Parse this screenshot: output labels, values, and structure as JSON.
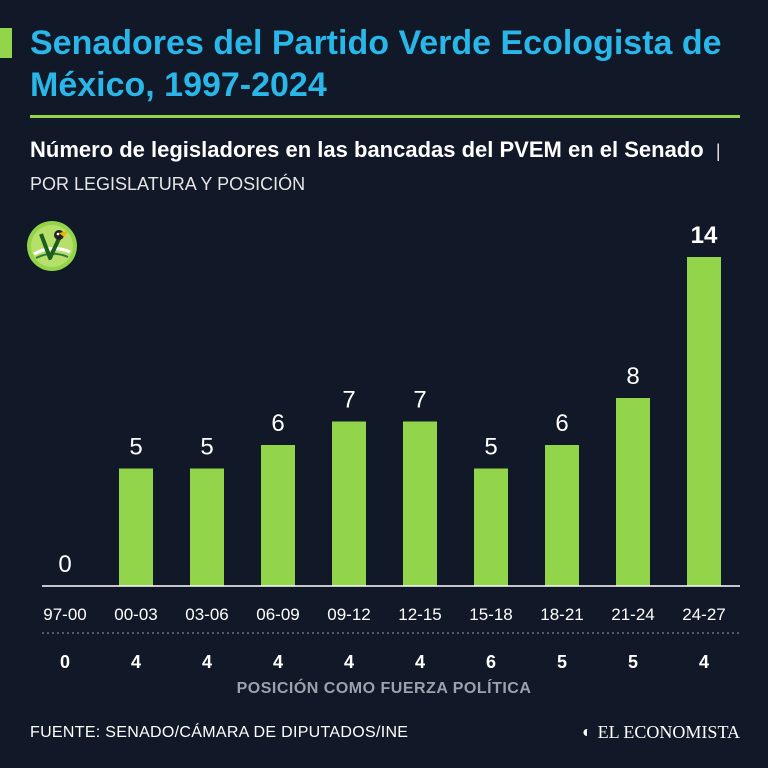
{
  "title": "Senadores del Partido Verde Ecologista de México, 1997-2024",
  "subtitle": {
    "main": "Número de legisladores en las bancadas del PVEM en el Senado",
    "note": "| POR LEGISLATURA Y POSICIÓN"
  },
  "colors": {
    "accent": "#92d44a",
    "title": "#29b6e8",
    "background": "#111827",
    "muted": "#9aa3ad"
  },
  "logo_icon": "pvem-toucan-logo-icon",
  "chart_data": {
    "type": "bar",
    "categories": [
      "97-00",
      "00-03",
      "03-06",
      "06-09",
      "09-12",
      "12-15",
      "15-18",
      "18-21",
      "21-24",
      "24-27"
    ],
    "values": [
      0,
      5,
      5,
      6,
      7,
      7,
      5,
      6,
      8,
      14
    ],
    "highlight_index": 9,
    "positions": [
      "0",
      "4",
      "4",
      "4",
      "4",
      "4",
      "6",
      "5",
      "5",
      "4"
    ],
    "positions_label": "POSICIÓN COMO FUERZA POLÍTICA",
    "ylim": [
      0,
      14
    ]
  },
  "source": "FUENTE: SENADO/CÁMARA DE DIPUTADOS/INE",
  "brand": "EL ECONOMISTA",
  "brand_icon": "el-economista-e-icon"
}
